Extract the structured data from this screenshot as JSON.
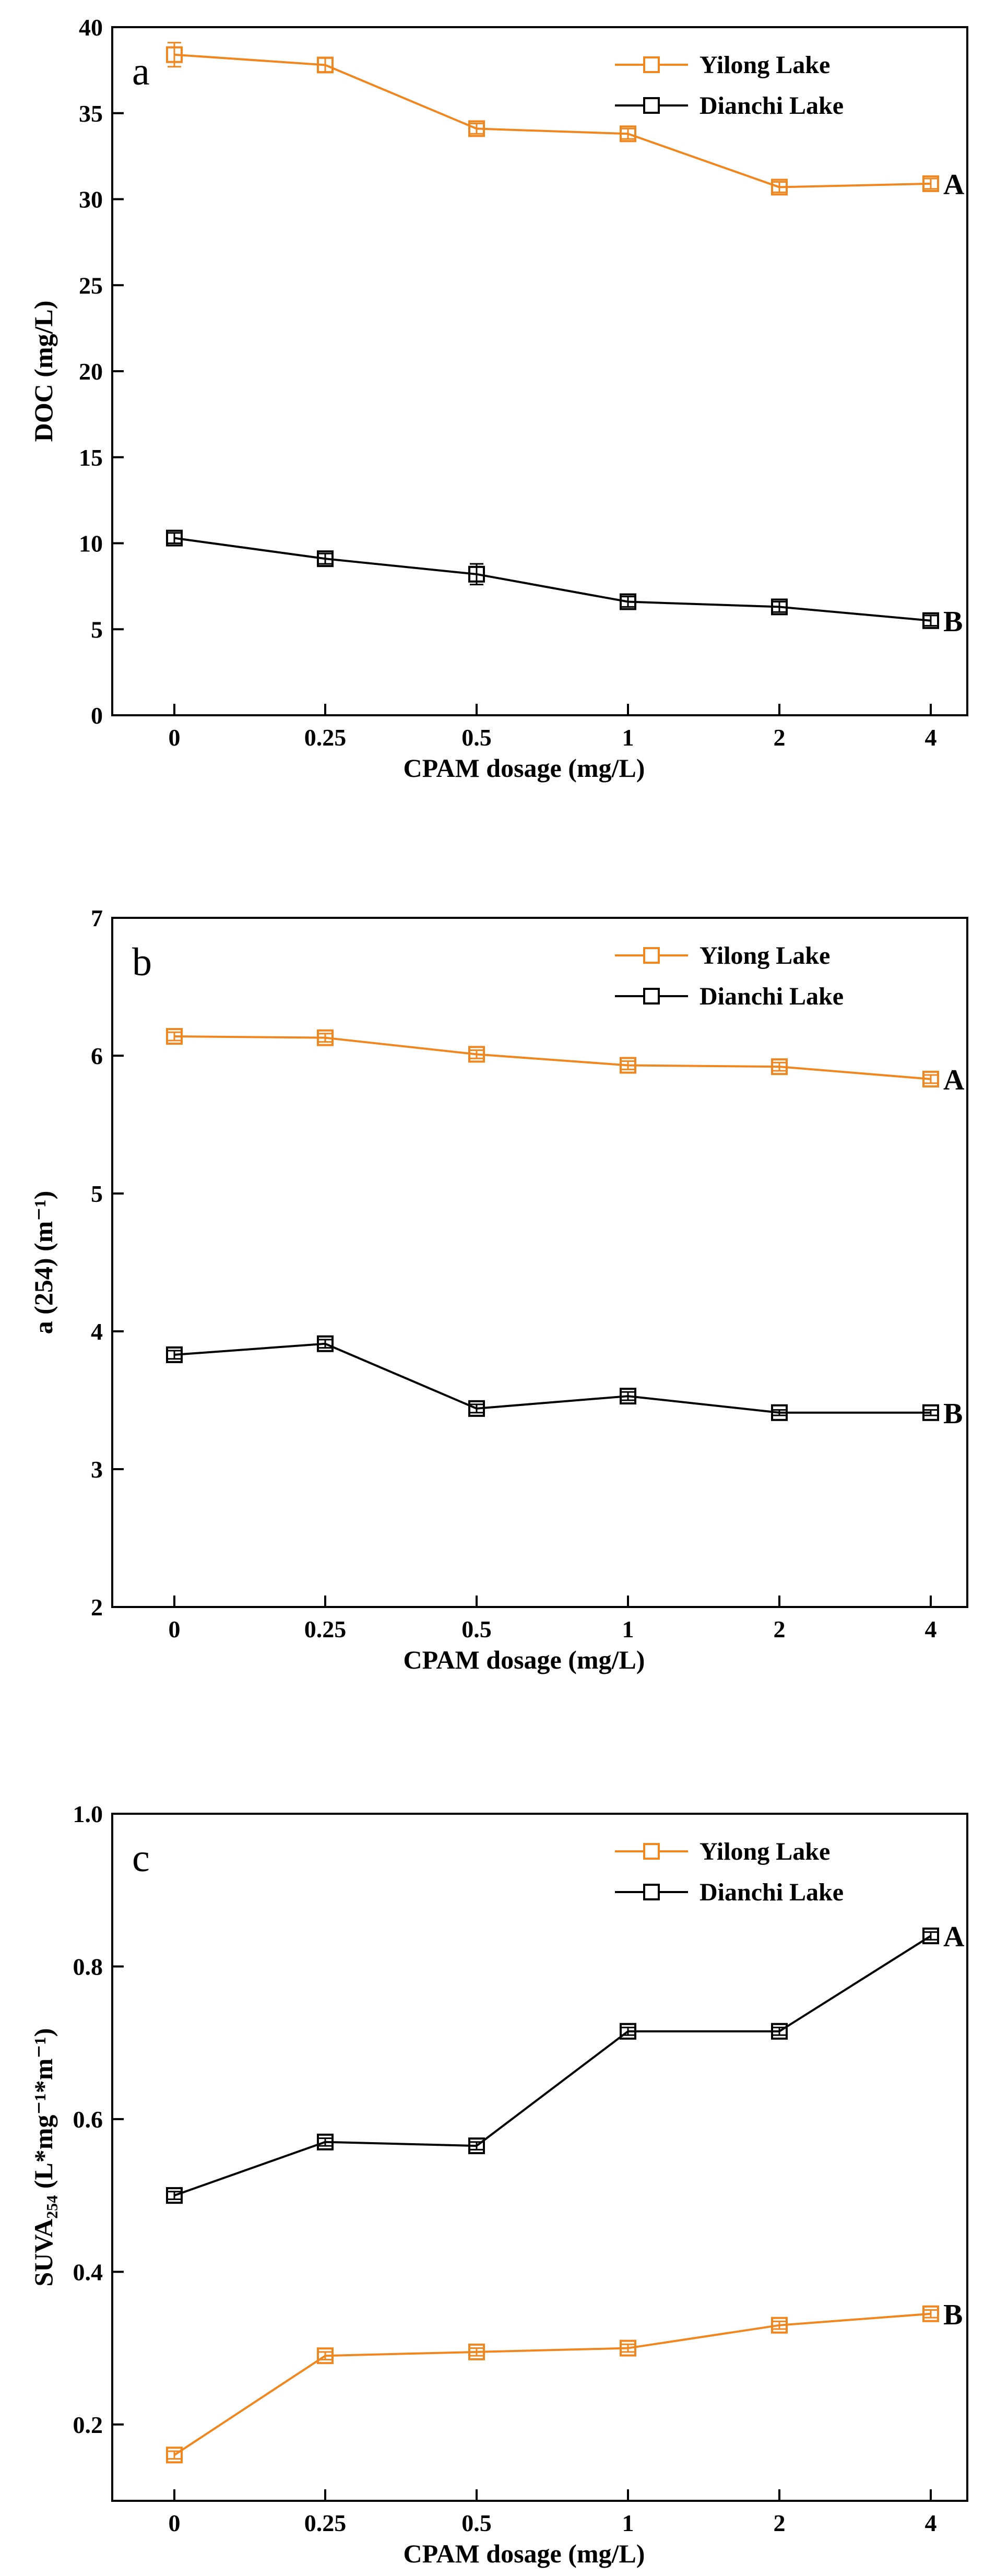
{
  "palette": {
    "orange": "#f0861d",
    "black": "#000000"
  },
  "chart_data": [
    {
      "type": "line",
      "panel_letter": "a",
      "categories": [
        "0",
        "0.25",
        "0.5",
        "1",
        "2",
        "4"
      ],
      "xlabel": "CPAM dosage (mg/L)",
      "ylabel": "DOC (mg/L)",
      "ylim": [
        0,
        40
      ],
      "yticks": [
        0,
        5,
        10,
        15,
        20,
        25,
        30,
        35,
        40
      ],
      "ytick_labels": [
        "0",
        "5",
        "10",
        "15",
        "20",
        "25",
        "30",
        "35",
        "40"
      ],
      "legend": [
        "Yilong Lake",
        "Dianchi Lake"
      ],
      "series": [
        {
          "name": "Yilong Lake",
          "color": "#f0861d",
          "values": [
            38.4,
            37.8,
            34.1,
            33.8,
            30.7,
            30.9
          ],
          "errors": [
            0.7,
            0.4,
            0.3,
            0.3,
            0.3,
            0.3
          ],
          "end_label": "A"
        },
        {
          "name": "Dianchi Lake",
          "color": "#000000",
          "values": [
            10.3,
            9.1,
            8.2,
            6.6,
            6.3,
            5.5
          ],
          "errors": [
            0.3,
            0.3,
            0.6,
            0.3,
            0.3,
            0.3
          ],
          "end_label": "B"
        }
      ]
    },
    {
      "type": "line",
      "panel_letter": "b",
      "categories": [
        "0",
        "0.25",
        "0.5",
        "1",
        "2",
        "4"
      ],
      "xlabel": "CPAM dosage (mg/L)",
      "ylabel": "a (254) (m⁻¹)",
      "ylim": [
        2,
        7
      ],
      "yticks": [
        2,
        3,
        4,
        5,
        6,
        7
      ],
      "ytick_labels": [
        "2",
        "3",
        "4",
        "5",
        "6",
        "7"
      ],
      "legend": [
        "Yilong Lake",
        "Dianchi Lake"
      ],
      "series": [
        {
          "name": "Yilong Lake",
          "color": "#f0861d",
          "values": [
            6.14,
            6.13,
            6.01,
            5.93,
            5.92,
            5.83
          ],
          "errors": [
            0.03,
            0.03,
            0.03,
            0.03,
            0.03,
            0.03
          ],
          "end_label": "A"
        },
        {
          "name": "Dianchi Lake",
          "color": "#000000",
          "values": [
            3.83,
            3.91,
            3.44,
            3.53,
            3.41,
            3.41
          ],
          "errors": [
            0.03,
            0.03,
            0.03,
            0.03,
            0.02,
            0.02
          ],
          "end_label": "B"
        }
      ]
    },
    {
      "type": "line",
      "panel_letter": "c",
      "categories": [
        "0",
        "0.25",
        "0.5",
        "1",
        "2",
        "4"
      ],
      "xlabel": "CPAM dosage (mg/L)",
      "ylabel": "SUVA₂₅₄ (L*mg⁻¹*m⁻¹)",
      "ylim": [
        0.1,
        1.0
      ],
      "yticks": [
        0.2,
        0.4,
        0.6,
        0.8,
        1.0
      ],
      "ytick_labels": [
        "0.2",
        "0.4",
        "0.6",
        "0.8",
        "1.0"
      ],
      "legend": [
        "Yilong Lake",
        "Dianchi Lake"
      ],
      "series": [
        {
          "name": "Yilong Lake",
          "color": "#f0861d",
          "values": [
            0.16,
            0.29,
            0.295,
            0.3,
            0.33,
            0.345
          ],
          "errors": [
            0.005,
            0.005,
            0.005,
            0.005,
            0.005,
            0.005
          ],
          "end_label": "B"
        },
        {
          "name": "Dianchi Lake",
          "color": "#000000",
          "values": [
            0.5,
            0.57,
            0.565,
            0.715,
            0.715,
            0.84
          ],
          "errors": [
            0.005,
            0.005,
            0.005,
            0.005,
            0.005,
            0.005
          ],
          "end_label": "A"
        }
      ]
    }
  ]
}
